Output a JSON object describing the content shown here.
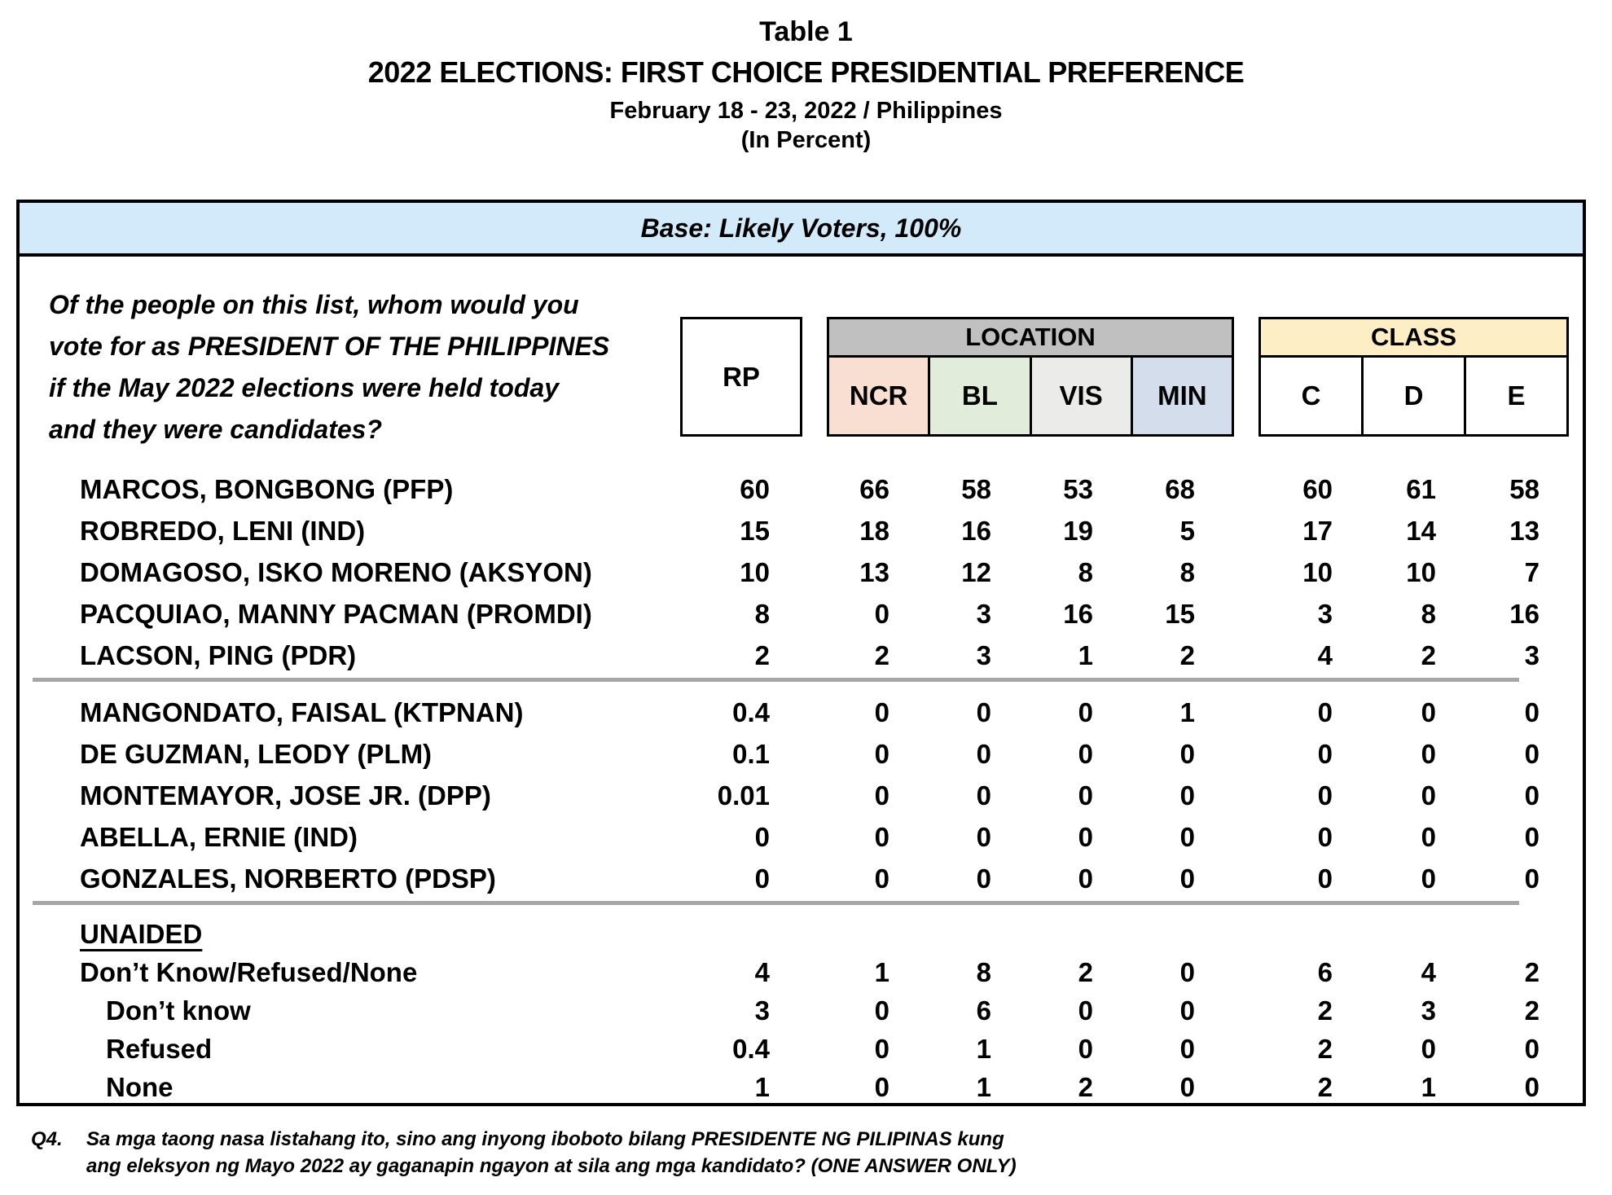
{
  "title": {
    "line1": "Table 1",
    "line2": "2022 ELECTIONS: FIRST CHOICE PRESIDENTIAL PREFERENCE",
    "line3": "February 18 - 23, 2022 / Philippines",
    "line4": "(In Percent)"
  },
  "base_bar": "Base: Likely Voters, 100%",
  "question": {
    "lines": [
      "Of the people on this list, whom would you",
      "vote for as PRESIDENT OF THE PHILIPPINES",
      "if the May 2022 elections were held today",
      "and they were candidates?"
    ]
  },
  "table": {
    "header": {
      "rp": "RP",
      "location": {
        "label": "LOCATION",
        "cols": [
          "NCR",
          "BL",
          "VIS",
          "MIN"
        ]
      },
      "class": {
        "label": "CLASS",
        "cols": [
          "C",
          "D",
          "E"
        ]
      }
    },
    "rows": [
      {
        "type": "data",
        "label": "MARCOS, BONGBONG (PFP)",
        "values": [
          "60",
          "66",
          "58",
          "53",
          "68",
          "60",
          "61",
          "58"
        ]
      },
      {
        "type": "data",
        "label": "ROBREDO, LENI (IND)",
        "values": [
          "15",
          "18",
          "16",
          "19",
          "5",
          "17",
          "14",
          "13"
        ]
      },
      {
        "type": "data",
        "label": "DOMAGOSO, ISKO MORENO (AKSYON)",
        "values": [
          "10",
          "13",
          "12",
          "8",
          "8",
          "10",
          "10",
          "7"
        ]
      },
      {
        "type": "data",
        "label": "PACQUIAO, MANNY PACMAN (PROMDI)",
        "values": [
          "8",
          "0",
          "3",
          "16",
          "15",
          "3",
          "8",
          "16"
        ]
      },
      {
        "type": "data",
        "label": "LACSON, PING (PDR)",
        "values": [
          "2",
          "2",
          "3",
          "1",
          "2",
          "4",
          "2",
          "3"
        ]
      },
      {
        "type": "divider"
      },
      {
        "type": "data",
        "label": "MANGONDATO, FAISAL (KTPNAN)",
        "values": [
          "0.4",
          "0",
          "0",
          "0",
          "1",
          "0",
          "0",
          "0"
        ]
      },
      {
        "type": "data",
        "label": "DE GUZMAN, LEODY (PLM)",
        "values": [
          "0.1",
          "0",
          "0",
          "0",
          "0",
          "0",
          "0",
          "0"
        ]
      },
      {
        "type": "data",
        "label": "MONTEMAYOR, JOSE JR. (DPP)",
        "values": [
          "0.01",
          "0",
          "0",
          "0",
          "0",
          "0",
          "0",
          "0"
        ]
      },
      {
        "type": "data",
        "label": "ABELLA, ERNIE (IND)",
        "values": [
          "0",
          "0",
          "0",
          "0",
          "0",
          "0",
          "0",
          "0"
        ]
      },
      {
        "type": "data",
        "label": "GONZALES, NORBERTO (PDSP)",
        "values": [
          "0",
          "0",
          "0",
          "0",
          "0",
          "0",
          "0",
          "0"
        ]
      },
      {
        "type": "divider"
      },
      {
        "type": "header",
        "label": "UNAIDED",
        "compact": true
      },
      {
        "type": "data",
        "label": "Don’t Know/Refused/None",
        "values": [
          "4",
          "1",
          "8",
          "2",
          "0",
          "6",
          "4",
          "2"
        ],
        "compact": true
      },
      {
        "type": "data",
        "label": "Don’t know",
        "values": [
          "3",
          "0",
          "6",
          "0",
          "0",
          "2",
          "3",
          "2"
        ],
        "indent": true,
        "compact": true
      },
      {
        "type": "data",
        "label": "Refused",
        "values": [
          "0.4",
          "0",
          "1",
          "0",
          "0",
          "2",
          "0",
          "0"
        ],
        "indent": true,
        "compact": true
      },
      {
        "type": "data",
        "label": "None",
        "values": [
          "1",
          "0",
          "1",
          "2",
          "0",
          "2",
          "1",
          "0"
        ],
        "indent": true,
        "compact": true
      }
    ]
  },
  "footnote": {
    "q_label": "Q4.",
    "line1": "Sa mga taong nasa listahang ito, sino ang inyong iboboto bilang PRESIDENTE NG PILIPINAS kung",
    "line2": "ang eleksyon ng Mayo 2022 ay gaganapin ngayon at sila ang mga kandidato? (ONE ANSWER ONLY)"
  },
  "colors": {
    "base_bar_bg": "#d3eafa",
    "location_header_bg": "#c1c0c0",
    "ncr_bg": "#f9ded2",
    "bl_bg": "#e1edda",
    "vis_bg": "#ebebe9",
    "min_bg": "#d4ddec",
    "class_header_bg": "#fdeec5",
    "divider": "#a6a6a6"
  }
}
